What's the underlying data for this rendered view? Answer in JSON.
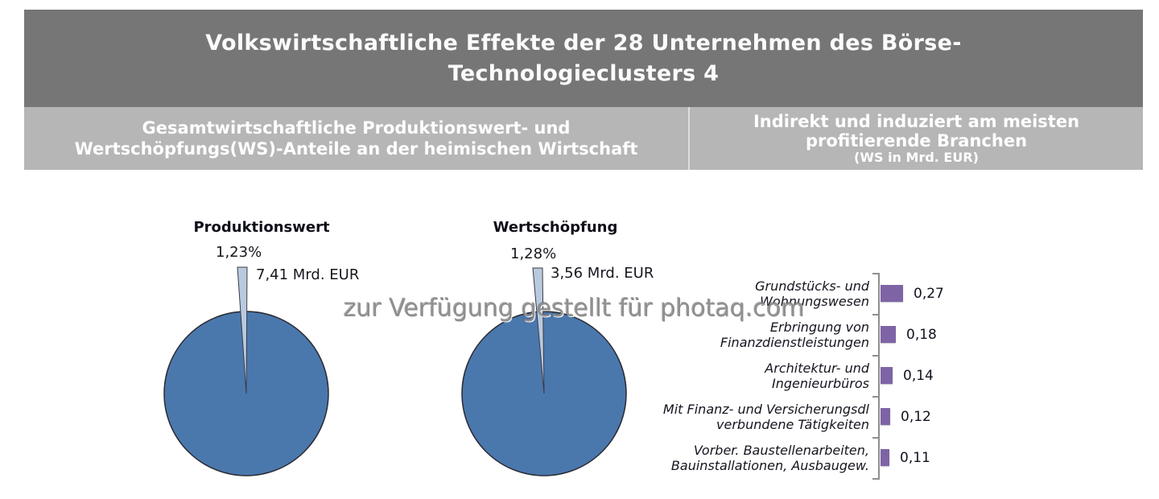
{
  "header": {
    "title_line1": "Volkswirtschaftliche Effekte der 28 Unternehmen des Börse-",
    "title_line2": "Technologieclusters 4",
    "left_subtitle_line1": "Gesamtwirtschaftliche Produktionswert- und",
    "left_subtitle_line2": "Wertschöpfungs(WS)-Anteile an der heimischen Wirtschaft",
    "right_subtitle_line1": "Indirekt und induziert am meisten",
    "right_subtitle_line2": "profitierende Branchen",
    "right_subtitle_note": "(WS in Mrd. EUR)"
  },
  "watermark": "zur Verfügung gestellt für photaq.com",
  "colors": {
    "header_dark": "#767676",
    "header_light": "#b6b6b6",
    "pie_fill": "#4a78ad",
    "pie_sliver": "#b9cade",
    "pie_stroke": "#2b2b33",
    "bar_fill": "#7e64a5",
    "axis": "#8f8f8f"
  },
  "chart_data": [
    {
      "type": "pie",
      "title": "Produktionswert",
      "slices": [
        {
          "value": 1.23,
          "percent_label": "1,23%",
          "amount_label": "7,41 Mrd. EUR",
          "color": "#b9cade",
          "exploded": true
        },
        {
          "value": 98.77,
          "color": "#4a78ad"
        }
      ],
      "legend": false
    },
    {
      "type": "pie",
      "title": "Wertschöpfung",
      "slices": [
        {
          "value": 1.28,
          "percent_label": "1,28%",
          "amount_label": "3,56 Mrd. EUR",
          "color": "#b9cade",
          "exploded": true
        },
        {
          "value": 98.72,
          "color": "#4a78ad"
        }
      ],
      "legend": false
    },
    {
      "type": "bar",
      "orientation": "horizontal",
      "title": "Indirekt und induziert am meisten profitierende Branchen",
      "unit": "WS in Mrd. EUR",
      "categories": [
        "Grundstücks- und Wohnungswesen",
        "Erbringung von Finanzdienstleistungen",
        "Architektur- und Ingenieurbüros",
        "Mit Finanz- und Versicherungsdl verbundene Tätigkeiten",
        "Vorber. Baustellenarbeiten, Bauinstallationen, Ausbaugew."
      ],
      "category_lines": [
        [
          "Grundstücks- und",
          "Wohnungswesen"
        ],
        [
          "Erbringung von",
          "Finanzdienstleistungen"
        ],
        [
          "Architektur- und",
          "Ingenieurbüros"
        ],
        [
          "Mit Finanz- und Versicherungsdl",
          "verbundene Tätigkeiten"
        ],
        [
          "Vorber. Baustellenarbeiten,",
          "Bauinstallationen, Ausbaugew."
        ]
      ],
      "values": [
        0.27,
        0.18,
        0.14,
        0.12,
        0.11
      ],
      "value_labels": [
        "0,27",
        "0,18",
        "0,14",
        "0,12",
        "0,11"
      ],
      "xlim": [
        0,
        0.3
      ],
      "bar_color": "#7e64a5",
      "grid": false,
      "legend": false
    }
  ]
}
